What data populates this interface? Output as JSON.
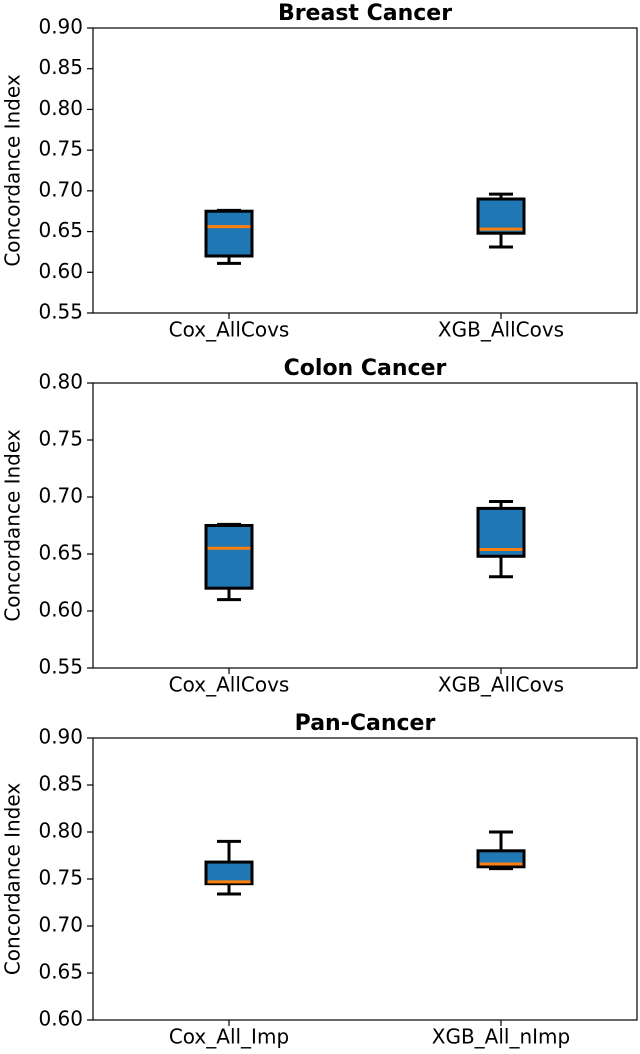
{
  "chart_data": [
    {
      "type": "box",
      "title": "Breast Cancer",
      "ylabel": "Concordance Index",
      "categories": [
        "Cox_AllCovs",
        "XGB_AllCovs"
      ],
      "color": "#1f77b4",
      "median_color": "#ff7f0e",
      "boxes": [
        {
          "whislo": 0.611,
          "q1": 0.62,
          "med": 0.656,
          "q3": 0.675,
          "whishi": 0.676
        },
        {
          "whislo": 0.631,
          "q1": 0.648,
          "med": 0.653,
          "q3": 0.69,
          "whishi": 0.696
        }
      ],
      "ylim": [
        0.55,
        0.9
      ],
      "yticks": [
        0.55,
        {
          "value": 0.6,
          "label": "0.60"
        },
        0.65,
        {
          "value": 0.7,
          "label": "0.70"
        },
        0.75,
        {
          "value": 0.8,
          "label": "0.80"
        },
        0.85,
        {
          "value": 0.9,
          "label": "0.90"
        }
      ]
    },
    {
      "type": "box",
      "title": "Colon Cancer",
      "ylabel": "Concordance Index",
      "categories": [
        "Cox_AllCovs",
        "XGB_AllCovs"
      ],
      "color": "#1f77b4",
      "median_color": "#ff7f0e",
      "boxes": [
        {
          "whislo": 0.61,
          "q1": 0.62,
          "med": 0.655,
          "q3": 0.675,
          "whishi": 0.676
        },
        {
          "whislo": 0.63,
          "q1": 0.648,
          "med": 0.654,
          "q3": 0.69,
          "whishi": 0.696
        }
      ],
      "ylim": [
        0.55,
        0.8
      ],
      "yticks": [
        0.55,
        {
          "value": 0.6,
          "label": "0.60"
        },
        0.65,
        {
          "value": 0.7,
          "label": "0.70"
        },
        0.75,
        {
          "value": 0.8,
          "label": "0.80"
        }
      ]
    },
    {
      "type": "box",
      "title": "Pan-Cancer",
      "ylabel": "Concordance Index",
      "categories": [
        "Cox_All_Imp",
        "XGB_All_nImp"
      ],
      "color": "#1f77b4",
      "median_color": "#ff7f0e",
      "boxes": [
        {
          "whislo": 0.734,
          "q1": 0.745,
          "med": 0.747,
          "q3": 0.768,
          "whishi": 0.79
        },
        {
          "whislo": 0.761,
          "q1": 0.763,
          "med": 0.766,
          "q3": 0.78,
          "whishi": 0.8
        }
      ],
      "ylim": [
        0.6,
        0.9
      ],
      "yticks": [
        {
          "value": 0.6,
          "label": "0.60"
        },
        0.65,
        {
          "value": 0.7,
          "label": "0.70"
        },
        0.75,
        {
          "value": 0.8,
          "label": "0.80"
        },
        0.85,
        {
          "value": 0.9,
          "label": "0.90"
        }
      ]
    }
  ]
}
